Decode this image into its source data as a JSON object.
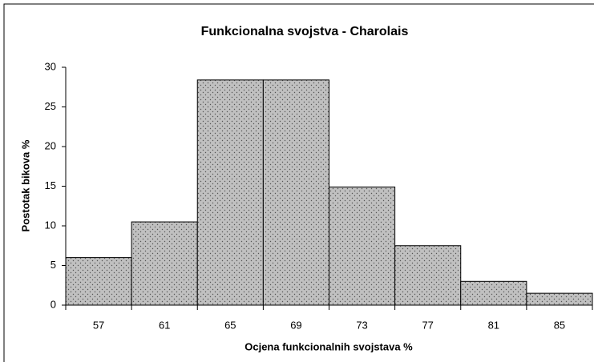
{
  "chart_data": {
    "type": "bar",
    "title": "Funkcionalna svojstva - Charolais",
    "x_label": "Ocjena  funkcionalnih svojstava %",
    "y_label": "Postotak bikova %",
    "categories": [
      "57",
      "61",
      "65",
      "69",
      "73",
      "77",
      "81",
      "85"
    ],
    "values": [
      6,
      10.5,
      28.4,
      28.4,
      14.9,
      7.5,
      3,
      1.5
    ],
    "color": "#c0c0c0",
    "ylim": [
      0,
      30
    ],
    "yticks": [
      0,
      5,
      10,
      15,
      20,
      25,
      30
    ],
    "grid": false
  }
}
